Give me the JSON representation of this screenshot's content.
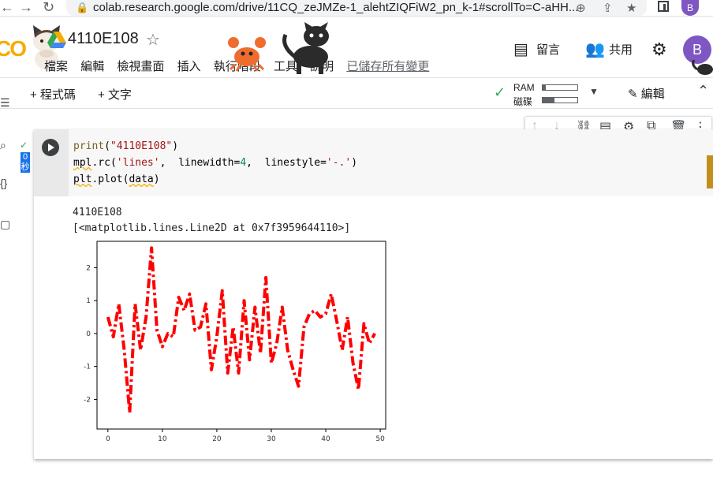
{
  "browser": {
    "url": "colab.research.google.com/drive/11CQ_zeJMZe-1_alehtZIQFiW2_pn_k-1#scrollTo=C-aHH...",
    "avatar_letter": "B"
  },
  "header": {
    "logo_text": "CO",
    "title": "4110E108",
    "menu": [
      "檔案",
      "編輯",
      "檢視畫面",
      "插入",
      "執行階段",
      "工具",
      "說明"
    ],
    "saved_status": "已儲存所有變更",
    "comments_label": "留言",
    "share_label": "共用",
    "avatar_letter": "B"
  },
  "toolbar": {
    "add_code": "+ 程式碼",
    "add_text": "+ 文字",
    "ram_label": "RAM",
    "disk_label": "磁碟",
    "ram_fraction": 0.08,
    "disk_fraction": 0.35,
    "edit_label": "編輯"
  },
  "cell": {
    "exec_time_value": "0",
    "exec_time_unit": "秒",
    "output_line1": "4110E108",
    "output_line2": "[<matplotlib.lines.Line2D at 0x7f3959644110>]"
  },
  "colors": {
    "line": "#ff0000",
    "accent_green": "#34a853",
    "avatar": "#7e57c2"
  },
  "icons": [
    "back-arrow-icon",
    "forward-arrow-icon",
    "reload-icon",
    "lock-icon",
    "zoom-icon",
    "share-icon",
    "bookmark-star-icon",
    "drive-icon",
    "star-icon",
    "comment-icon",
    "people-icon",
    "gear-icon",
    "check-icon",
    "pencil-icon",
    "run-icon"
  ],
  "chart_data": {
    "type": "line",
    "xlim": [
      -2,
      51
    ],
    "ylim": [
      -2.9,
      2.8
    ],
    "xticks": [
      0,
      10,
      20,
      30,
      40,
      50
    ],
    "yticks": [
      -2,
      -1,
      0,
      1,
      2
    ],
    "series": [
      {
        "x": [
          0,
          1,
          2,
          3,
          4,
          5,
          6,
          7,
          8,
          9,
          10,
          11,
          12,
          13,
          14,
          15,
          16,
          17,
          18,
          19,
          20,
          21,
          22,
          23,
          24,
          25,
          26,
          27,
          28,
          29,
          30,
          31,
          32,
          33,
          34,
          35,
          36,
          37,
          38,
          39,
          40,
          41,
          42,
          43,
          44,
          45,
          46,
          47,
          48,
          49
        ],
        "values": [
          0.5,
          -0.1,
          0.9,
          -0.5,
          -2.4,
          0.9,
          -0.5,
          0.5,
          2.6,
          0.1,
          -0.4,
          0.0,
          -0.1,
          1.1,
          0.7,
          1.2,
          0.1,
          0.2,
          0.9,
          -1.1,
          -0.1,
          1.3,
          -1.2,
          0.2,
          -1.2,
          1.0,
          -0.8,
          0.8,
          -0.6,
          1.7,
          -0.9,
          -0.3,
          0.8,
          -0.5,
          -1.1,
          -1.6,
          0.2,
          0.6,
          0.7,
          0.5,
          0.6,
          1.2,
          0.4,
          -0.5,
          0.5,
          -0.9,
          -1.7,
          0.3,
          -0.3,
          0.0
        ]
      }
    ],
    "linewidth": 4,
    "linestyle": "-.",
    "grid": false
  }
}
